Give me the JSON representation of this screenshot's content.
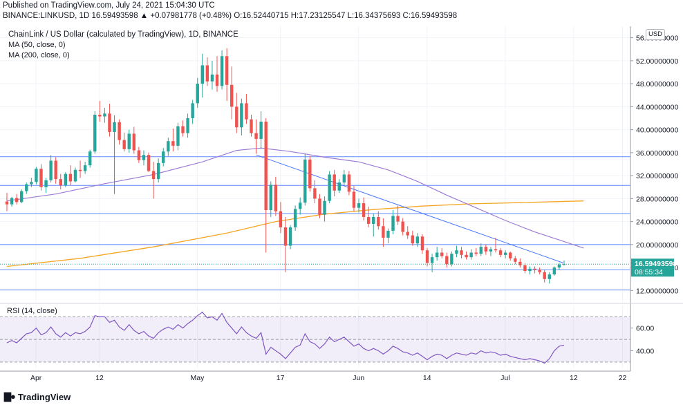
{
  "header": {
    "published": "Published on TradingView.com, July 24, 2021 15:04:30 UTC",
    "ticker_line": "BINANCE:LINKUSD, 1D 16.59493598 ▲ +0.07981778 (+0.48%) O:16.52440715 H:17.23125547 L:16.34375693 C:16.59493598"
  },
  "overlay": {
    "title": "ChainLink / US Dollar (calculated by TradingView), 1D, BINANCE",
    "ma50": "MA (50, close, 0)",
    "ma200": "MA (200, close, 0)",
    "currency_button": "USD"
  },
  "rsi": {
    "label": "RSI (14, close)"
  },
  "footer": {
    "brand": "TradingView",
    "logo_icon": "tradingview-logo-icon"
  },
  "colors": {
    "up": "#26a69a",
    "down": "#ef5350",
    "ma50": "#9c7cd4",
    "ma200": "#f5a623",
    "hline": "#2962ff",
    "trend": "#2962ff",
    "rsi": "#7e57c2"
  },
  "chart_data": {
    "type": "candlestick",
    "symbol": "LINKUSD",
    "timeframe": "1D",
    "price_axis": {
      "ylim": [
        10,
        58
      ],
      "ticks": [
        "56.00000000",
        "52.00000000",
        "48.00000000",
        "44.00000000",
        "40.00000000",
        "36.00000000",
        "32.00000000",
        "28.00000000",
        "24.00000000",
        "20.00000000",
        "16.00000000",
        "12.00000000"
      ]
    },
    "last_price_label": "16.59493598",
    "countdown_label": "08:55:34",
    "time_axis": {
      "labels": [
        "Apr",
        "12",
        "May",
        "17",
        "Jun",
        "14",
        "Jul",
        "12",
        "22"
      ]
    },
    "horizontal_levels": [
      35.3,
      30.3,
      25.4,
      20.0,
      15.6,
      12.1
    ],
    "trendline": {
      "from": {
        "day": 51,
        "price": 35.6
      },
      "to": {
        "day": 113,
        "price": 16.8
      }
    },
    "candles": [
      {
        "o": 27.5,
        "h": 29,
        "l": 25.8,
        "c": 27.0
      },
      {
        "o": 27.0,
        "h": 28.3,
        "l": 26.6,
        "c": 28.1
      },
      {
        "o": 28.1,
        "h": 28.8,
        "l": 27.0,
        "c": 27.4
      },
      {
        "o": 27.4,
        "h": 29.6,
        "l": 27.2,
        "c": 29.3
      },
      {
        "o": 29.3,
        "h": 30.8,
        "l": 28.8,
        "c": 30.5
      },
      {
        "o": 30.5,
        "h": 31.6,
        "l": 30.0,
        "c": 30.9
      },
      {
        "o": 30.9,
        "h": 33.5,
        "l": 30.5,
        "c": 33.2
      },
      {
        "o": 33.2,
        "h": 34.0,
        "l": 29.4,
        "c": 30.0
      },
      {
        "o": 30.0,
        "h": 31.6,
        "l": 29.0,
        "c": 31.2
      },
      {
        "o": 31.2,
        "h": 35.6,
        "l": 30.8,
        "c": 34.6
      },
      {
        "o": 34.6,
        "h": 35.2,
        "l": 30.6,
        "c": 31.4
      },
      {
        "o": 31.4,
        "h": 32.3,
        "l": 29.6,
        "c": 30.3
      },
      {
        "o": 30.3,
        "h": 32.6,
        "l": 30.0,
        "c": 32.3
      },
      {
        "o": 32.3,
        "h": 33.8,
        "l": 30.3,
        "c": 31.0
      },
      {
        "o": 31.0,
        "h": 33.4,
        "l": 30.8,
        "c": 33.0
      },
      {
        "o": 33.0,
        "h": 34.6,
        "l": 31.6,
        "c": 32.8
      },
      {
        "o": 32.8,
        "h": 34.4,
        "l": 32.3,
        "c": 33.8
      },
      {
        "o": 33.8,
        "h": 36.5,
        "l": 33.4,
        "c": 36.2
      },
      {
        "o": 36.2,
        "h": 43.2,
        "l": 35.8,
        "c": 42.6
      },
      {
        "o": 42.6,
        "h": 45.0,
        "l": 41.4,
        "c": 42.3
      },
      {
        "o": 42.3,
        "h": 43.8,
        "l": 41.2,
        "c": 42.8
      },
      {
        "o": 42.8,
        "h": 44.5,
        "l": 38.8,
        "c": 39.6
      },
      {
        "o": 39.6,
        "h": 42.5,
        "l": 28.8,
        "c": 41.3
      },
      {
        "o": 41.3,
        "h": 41.8,
        "l": 37.4,
        "c": 38.2
      },
      {
        "o": 38.2,
        "h": 39.5,
        "l": 36.2,
        "c": 36.6
      },
      {
        "o": 36.6,
        "h": 40.0,
        "l": 36.0,
        "c": 39.3
      },
      {
        "o": 39.3,
        "h": 40.5,
        "l": 35.8,
        "c": 36.4
      },
      {
        "o": 36.4,
        "h": 37.0,
        "l": 34.2,
        "c": 34.7
      },
      {
        "o": 34.7,
        "h": 36.4,
        "l": 33.8,
        "c": 35.6
      },
      {
        "o": 35.6,
        "h": 36.0,
        "l": 32.6,
        "c": 32.8
      },
      {
        "o": 32.8,
        "h": 34.4,
        "l": 28.0,
        "c": 31.4
      },
      {
        "o": 31.4,
        "h": 35.0,
        "l": 30.8,
        "c": 34.2
      },
      {
        "o": 34.2,
        "h": 36.8,
        "l": 33.6,
        "c": 36.2
      },
      {
        "o": 36.2,
        "h": 38.6,
        "l": 35.4,
        "c": 38.0
      },
      {
        "o": 38.0,
        "h": 40.2,
        "l": 36.2,
        "c": 37.2
      },
      {
        "o": 37.2,
        "h": 41.2,
        "l": 36.4,
        "c": 40.6
      },
      {
        "o": 40.6,
        "h": 41.6,
        "l": 38.8,
        "c": 39.4
      },
      {
        "o": 39.4,
        "h": 42.8,
        "l": 38.6,
        "c": 42.0
      },
      {
        "o": 42.0,
        "h": 45.2,
        "l": 41.0,
        "c": 44.6
      },
      {
        "o": 44.6,
        "h": 49.0,
        "l": 43.8,
        "c": 48.0
      },
      {
        "o": 48.0,
        "h": 53.2,
        "l": 45.6,
        "c": 51.2
      },
      {
        "o": 51.2,
        "h": 52.6,
        "l": 47.6,
        "c": 48.4
      },
      {
        "o": 48.4,
        "h": 52.0,
        "l": 47.0,
        "c": 49.6
      },
      {
        "o": 49.6,
        "h": 52.8,
        "l": 46.6,
        "c": 47.6
      },
      {
        "o": 47.6,
        "h": 53.8,
        "l": 47.0,
        "c": 52.8
      },
      {
        "o": 52.8,
        "h": 54.2,
        "l": 45.0,
        "c": 47.8
      },
      {
        "o": 47.8,
        "h": 51.0,
        "l": 41.8,
        "c": 44.0
      },
      {
        "o": 44.0,
        "h": 46.4,
        "l": 39.4,
        "c": 40.4
      },
      {
        "o": 40.4,
        "h": 45.4,
        "l": 39.0,
        "c": 44.6
      },
      {
        "o": 44.6,
        "h": 46.2,
        "l": 41.0,
        "c": 41.8
      },
      {
        "o": 41.8,
        "h": 42.6,
        "l": 38.8,
        "c": 39.4
      },
      {
        "o": 39.4,
        "h": 41.8,
        "l": 35.8,
        "c": 38.4
      },
      {
        "o": 38.4,
        "h": 43.2,
        "l": 36.6,
        "c": 41.4
      },
      {
        "o": 41.4,
        "h": 42.0,
        "l": 18.6,
        "c": 26.0
      },
      {
        "o": 26.0,
        "h": 31.0,
        "l": 24.8,
        "c": 30.4
      },
      {
        "o": 30.4,
        "h": 31.8,
        "l": 25.0,
        "c": 25.8
      },
      {
        "o": 25.8,
        "h": 27.4,
        "l": 22.0,
        "c": 23.0
      },
      {
        "o": 23.0,
        "h": 24.8,
        "l": 15.2,
        "c": 19.8
      },
      {
        "o": 19.8,
        "h": 23.4,
        "l": 19.2,
        "c": 23.0
      },
      {
        "o": 23.0,
        "h": 26.8,
        "l": 22.4,
        "c": 26.2
      },
      {
        "o": 26.2,
        "h": 28.2,
        "l": 25.2,
        "c": 27.3
      },
      {
        "o": 27.3,
        "h": 35.8,
        "l": 26.8,
        "c": 34.8
      },
      {
        "o": 34.8,
        "h": 35.4,
        "l": 29.2,
        "c": 29.8
      },
      {
        "o": 29.8,
        "h": 31.2,
        "l": 27.2,
        "c": 28.0
      },
      {
        "o": 28.0,
        "h": 28.8,
        "l": 24.6,
        "c": 25.2
      },
      {
        "o": 25.2,
        "h": 28.4,
        "l": 24.0,
        "c": 27.6
      },
      {
        "o": 27.6,
        "h": 32.8,
        "l": 27.2,
        "c": 32.2
      },
      {
        "o": 32.2,
        "h": 33.0,
        "l": 28.4,
        "c": 29.4
      },
      {
        "o": 29.4,
        "h": 31.4,
        "l": 29.0,
        "c": 30.8
      },
      {
        "o": 30.8,
        "h": 33.0,
        "l": 30.4,
        "c": 32.2
      },
      {
        "o": 32.2,
        "h": 32.8,
        "l": 28.6,
        "c": 29.2
      },
      {
        "o": 29.2,
        "h": 30.2,
        "l": 25.8,
        "c": 26.4
      },
      {
        "o": 26.4,
        "h": 28.0,
        "l": 25.6,
        "c": 27.2
      },
      {
        "o": 27.2,
        "h": 28.2,
        "l": 24.2,
        "c": 24.8
      },
      {
        "o": 24.8,
        "h": 26.6,
        "l": 23.0,
        "c": 23.6
      },
      {
        "o": 23.6,
        "h": 25.4,
        "l": 21.4,
        "c": 24.8
      },
      {
        "o": 24.8,
        "h": 25.8,
        "l": 22.6,
        "c": 23.2
      },
      {
        "o": 23.2,
        "h": 24.6,
        "l": 19.6,
        "c": 21.2
      },
      {
        "o": 21.2,
        "h": 22.8,
        "l": 20.2,
        "c": 22.4
      },
      {
        "o": 22.4,
        "h": 26.0,
        "l": 21.8,
        "c": 25.0
      },
      {
        "o": 25.0,
        "h": 26.8,
        "l": 23.4,
        "c": 24.0
      },
      {
        "o": 24.0,
        "h": 24.6,
        "l": 21.6,
        "c": 22.2
      },
      {
        "o": 22.2,
        "h": 23.2,
        "l": 21.0,
        "c": 21.6
      },
      {
        "o": 21.6,
        "h": 22.4,
        "l": 19.8,
        "c": 20.2
      },
      {
        "o": 20.2,
        "h": 22.0,
        "l": 19.6,
        "c": 21.4
      },
      {
        "o": 21.4,
        "h": 21.8,
        "l": 18.4,
        "c": 19.0
      },
      {
        "o": 19.0,
        "h": 19.4,
        "l": 16.2,
        "c": 16.8
      },
      {
        "o": 16.8,
        "h": 18.4,
        "l": 15.2,
        "c": 17.8
      },
      {
        "o": 17.8,
        "h": 19.6,
        "l": 17.2,
        "c": 18.6
      },
      {
        "o": 18.6,
        "h": 19.4,
        "l": 17.6,
        "c": 18.0
      },
      {
        "o": 18.0,
        "h": 18.6,
        "l": 16.0,
        "c": 16.6
      },
      {
        "o": 16.6,
        "h": 18.8,
        "l": 16.2,
        "c": 18.4
      },
      {
        "o": 18.4,
        "h": 19.8,
        "l": 17.8,
        "c": 19.0
      },
      {
        "o": 19.0,
        "h": 19.6,
        "l": 17.6,
        "c": 18.2
      },
      {
        "o": 18.2,
        "h": 18.8,
        "l": 17.4,
        "c": 17.8
      },
      {
        "o": 17.8,
        "h": 19.2,
        "l": 17.4,
        "c": 18.6
      },
      {
        "o": 18.6,
        "h": 19.4,
        "l": 18.0,
        "c": 18.4
      },
      {
        "o": 18.4,
        "h": 20.2,
        "l": 18.0,
        "c": 19.6
      },
      {
        "o": 19.6,
        "h": 20.0,
        "l": 18.2,
        "c": 18.8
      },
      {
        "o": 18.8,
        "h": 19.6,
        "l": 18.0,
        "c": 19.2
      },
      {
        "o": 19.2,
        "h": 21.2,
        "l": 18.6,
        "c": 19.0
      },
      {
        "o": 19.0,
        "h": 19.4,
        "l": 17.8,
        "c": 18.2
      },
      {
        "o": 18.2,
        "h": 19.0,
        "l": 17.6,
        "c": 18.6
      },
      {
        "o": 18.6,
        "h": 18.8,
        "l": 17.2,
        "c": 17.6
      },
      {
        "o": 17.6,
        "h": 18.0,
        "l": 16.6,
        "c": 17.0
      },
      {
        "o": 17.0,
        "h": 17.6,
        "l": 16.0,
        "c": 16.4
      },
      {
        "o": 16.4,
        "h": 16.8,
        "l": 15.0,
        "c": 15.4
      },
      {
        "o": 15.4,
        "h": 16.2,
        "l": 14.8,
        "c": 15.8
      },
      {
        "o": 15.8,
        "h": 16.2,
        "l": 15.0,
        "c": 15.6
      },
      {
        "o": 15.6,
        "h": 16.0,
        "l": 14.8,
        "c": 15.2
      },
      {
        "o": 15.2,
        "h": 15.6,
        "l": 13.4,
        "c": 14.0
      },
      {
        "o": 14.0,
        "h": 15.2,
        "l": 13.2,
        "c": 14.8
      },
      {
        "o": 14.8,
        "h": 16.2,
        "l": 14.6,
        "c": 16.0
      },
      {
        "o": 16.0,
        "h": 16.8,
        "l": 15.6,
        "c": 16.52
      },
      {
        "o": 16.52,
        "h": 17.23,
        "l": 16.34,
        "c": 16.59
      }
    ],
    "ma50": [
      {
        "day": 0,
        "v": 27.6
      },
      {
        "day": 10,
        "v": 28.8
      },
      {
        "day": 20,
        "v": 30.6
      },
      {
        "day": 30,
        "v": 32.2
      },
      {
        "day": 40,
        "v": 34.4
      },
      {
        "day": 47,
        "v": 36.4
      },
      {
        "day": 52,
        "v": 36.8
      },
      {
        "day": 58,
        "v": 36.2
      },
      {
        "day": 65,
        "v": 35.2
      },
      {
        "day": 72,
        "v": 34.4
      },
      {
        "day": 78,
        "v": 33.0
      },
      {
        "day": 84,
        "v": 31.0
      },
      {
        "day": 90,
        "v": 28.6
      },
      {
        "day": 96,
        "v": 26.4
      },
      {
        "day": 102,
        "v": 24.2
      },
      {
        "day": 108,
        "v": 22.2
      },
      {
        "day": 113,
        "v": 20.8
      },
      {
        "day": 118,
        "v": 19.4
      }
    ],
    "ma200": [
      {
        "day": 0,
        "v": 16.2
      },
      {
        "day": 15,
        "v": 17.6
      },
      {
        "day": 30,
        "v": 19.6
      },
      {
        "day": 45,
        "v": 22.0
      },
      {
        "day": 55,
        "v": 24.0
      },
      {
        "day": 65,
        "v": 25.3
      },
      {
        "day": 75,
        "v": 26.1
      },
      {
        "day": 85,
        "v": 26.7
      },
      {
        "day": 95,
        "v": 27.1
      },
      {
        "day": 105,
        "v": 27.3
      },
      {
        "day": 118,
        "v": 27.6
      }
    ],
    "rsi": {
      "ylim": [
        25,
        80
      ],
      "ticks": [
        "60.00",
        "40.00"
      ],
      "bands": [
        70,
        30
      ],
      "values": [
        47,
        49,
        47,
        51,
        55,
        56,
        60,
        54,
        56,
        61,
        55,
        52,
        56,
        53,
        56,
        55,
        57,
        61,
        71,
        70,
        70,
        65,
        67,
        61,
        58,
        63,
        58,
        55,
        57,
        53,
        51,
        56,
        59,
        61,
        59,
        63,
        60,
        64,
        67,
        71,
        74,
        69,
        70,
        67,
        73,
        65,
        60,
        55,
        61,
        56,
        53,
        51,
        56,
        37,
        43,
        40,
        37,
        33,
        38,
        43,
        45,
        55,
        48,
        46,
        42,
        46,
        52,
        48,
        50,
        52,
        48,
        44,
        46,
        42,
        40,
        42,
        40,
        37,
        40,
        44,
        42,
        39,
        38,
        36,
        38,
        35,
        32,
        35,
        37,
        36,
        33,
        36,
        38,
        37,
        36,
        38,
        37,
        40,
        38,
        39,
        38,
        36,
        37,
        35,
        34,
        33,
        32,
        33,
        32,
        31,
        29,
        33,
        40,
        44,
        45
      ]
    }
  }
}
